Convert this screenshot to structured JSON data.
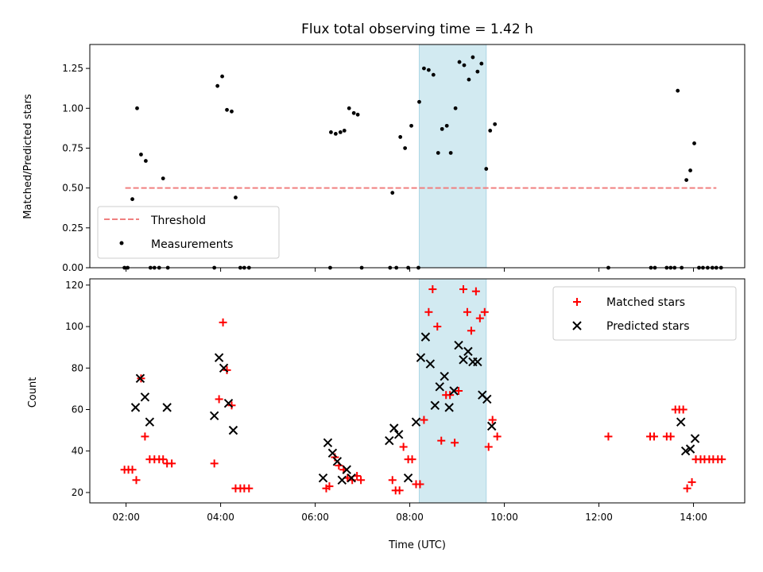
{
  "chart_data": [
    {
      "type": "scatter",
      "title": "Flux total observing time = 1.42 h",
      "xlabel": "",
      "ylabel": "Matched/Predicted stars",
      "ylim": [
        0,
        1.4
      ],
      "yticks": [
        0.0,
        0.25,
        0.5,
        0.75,
        1.0,
        1.25
      ],
      "ytick_labels": [
        "0.00",
        "0.25",
        "0.50",
        "0.75",
        "1.00",
        "1.25"
      ],
      "threshold": {
        "name": "Threshold",
        "value": 0.5,
        "x_range": [
          "01:59",
          "14:29"
        ],
        "color": "#f08080"
      },
      "highlight": {
        "from": "08:12",
        "to": "09:37",
        "color": "#add8e6"
      },
      "legend": {
        "position": "lower-left",
        "entries": [
          "Threshold",
          "Measurements"
        ]
      },
      "series": [
        {
          "name": "Measurements",
          "color": "#000000",
          "points": [
            [
              "01:58",
              0
            ],
            [
              "02:02",
              0
            ],
            [
              "02:08",
              0.43
            ],
            [
              "02:14",
              1.0
            ],
            [
              "02:19",
              0.71
            ],
            [
              "02:25",
              0.67
            ],
            [
              "02:31",
              0
            ],
            [
              "02:36",
              0
            ],
            [
              "02:42",
              0
            ],
            [
              "02:47",
              0.56
            ],
            [
              "02:53",
              0
            ],
            [
              "03:52",
              0
            ],
            [
              "03:56",
              1.14
            ],
            [
              "04:02",
              1.2
            ],
            [
              "04:08",
              0.99
            ],
            [
              "04:14",
              0.98
            ],
            [
              "04:19",
              0.44
            ],
            [
              "04:25",
              0
            ],
            [
              "04:30",
              0
            ],
            [
              "04:36",
              0
            ],
            [
              "06:19",
              0
            ],
            [
              "06:20",
              0.85
            ],
            [
              "06:26",
              0.84
            ],
            [
              "06:32",
              0.85
            ],
            [
              "06:37",
              0.86
            ],
            [
              "06:43",
              1.0
            ],
            [
              "06:49",
              0.97
            ],
            [
              "06:54",
              0.96
            ],
            [
              "06:59",
              0
            ],
            [
              "07:35",
              0
            ],
            [
              "07:38",
              0.47
            ],
            [
              "07:43",
              0
            ],
            [
              "07:48",
              0.82
            ],
            [
              "07:54",
              0.75
            ],
            [
              "07:58",
              0
            ],
            [
              "08:02",
              0.89
            ],
            [
              "08:11",
              0
            ],
            [
              "08:12",
              1.04
            ],
            [
              "08:18",
              1.25
            ],
            [
              "08:24",
              1.24
            ],
            [
              "08:30",
              1.21
            ],
            [
              "08:36",
              0.72
            ],
            [
              "08:41",
              0.87
            ],
            [
              "08:47",
              0.89
            ],
            [
              "08:52",
              0.72
            ],
            [
              "08:58",
              1.0
            ],
            [
              "09:03",
              1.29
            ],
            [
              "09:09",
              1.27
            ],
            [
              "09:15",
              1.18
            ],
            [
              "09:20",
              1.32
            ],
            [
              "09:26",
              1.23
            ],
            [
              "09:31",
              1.28
            ],
            [
              "09:37",
              0.62
            ],
            [
              "09:42",
              0.86
            ],
            [
              "09:48",
              0.9
            ],
            [
              "12:12",
              0
            ],
            [
              "13:06",
              0
            ],
            [
              "13:11",
              0
            ],
            [
              "13:26",
              0
            ],
            [
              "13:31",
              0
            ],
            [
              "13:36",
              0
            ],
            [
              "13:40",
              1.11
            ],
            [
              "13:45",
              0
            ],
            [
              "13:51",
              0.55
            ],
            [
              "13:56",
              0.61
            ],
            [
              "14:01",
              0.78
            ],
            [
              "14:07",
              0
            ],
            [
              "14:12",
              0
            ],
            [
              "14:18",
              0
            ],
            [
              "14:24",
              0
            ],
            [
              "14:29",
              0
            ],
            [
              "14:35",
              0
            ]
          ]
        }
      ]
    },
    {
      "type": "scatter",
      "title": "",
      "xlabel": "Time (UTC)",
      "ylabel": "Count",
      "ylim": [
        15,
        123
      ],
      "xlim": [
        "01:14",
        "15:05"
      ],
      "xticks": [
        "02:00",
        "04:00",
        "06:00",
        "08:00",
        "10:00",
        "12:00",
        "14:00"
      ],
      "yticks": [
        20,
        40,
        60,
        80,
        100,
        120
      ],
      "ytick_labels": [
        "20",
        "40",
        "60",
        "80",
        "100",
        "120"
      ],
      "highlight": {
        "from": "08:12",
        "to": "09:37",
        "color": "#add8e6"
      },
      "legend": {
        "position": "upper-right",
        "entries": [
          "Matched stars",
          "Predicted stars"
        ]
      },
      "series": [
        {
          "name": "Matched stars",
          "marker": "+",
          "color": "#ff0000",
          "points": [
            [
              "01:58",
              31
            ],
            [
              "02:03",
              31
            ],
            [
              "02:08",
              31
            ],
            [
              "02:13",
              26
            ],
            [
              "02:19",
              75
            ],
            [
              "02:24",
              47
            ],
            [
              "02:30",
              36
            ],
            [
              "02:36",
              36
            ],
            [
              "02:42",
              36
            ],
            [
              "02:47",
              36
            ],
            [
              "02:52",
              34
            ],
            [
              "02:58",
              34
            ],
            [
              "03:52",
              34
            ],
            [
              "03:58",
              65
            ],
            [
              "04:03",
              102
            ],
            [
              "04:08",
              79
            ],
            [
              "04:14",
              62
            ],
            [
              "04:19",
              22
            ],
            [
              "04:25",
              22
            ],
            [
              "04:30",
              22
            ],
            [
              "04:36",
              22
            ],
            [
              "06:14",
              22
            ],
            [
              "06:18",
              23
            ],
            [
              "06:25",
              37
            ],
            [
              "06:30",
              33
            ],
            [
              "06:36",
              31
            ],
            [
              "06:41",
              27
            ],
            [
              "06:47",
              26
            ],
            [
              "06:53",
              28
            ],
            [
              "06:58",
              26
            ],
            [
              "07:38",
              26
            ],
            [
              "07:42",
              21
            ],
            [
              "07:47",
              21
            ],
            [
              "07:52",
              42
            ],
            [
              "07:58",
              36
            ],
            [
              "08:03",
              36
            ],
            [
              "08:08",
              24
            ],
            [
              "08:13",
              24
            ],
            [
              "08:18",
              55
            ],
            [
              "08:24",
              107
            ],
            [
              "08:29",
              118
            ],
            [
              "08:35",
              100
            ],
            [
              "08:40",
              45
            ],
            [
              "08:46",
              67
            ],
            [
              "08:51",
              67
            ],
            [
              "08:57",
              44
            ],
            [
              "09:02",
              69
            ],
            [
              "09:08",
              118
            ],
            [
              "09:13",
              107
            ],
            [
              "09:18",
              98
            ],
            [
              "09:24",
              117
            ],
            [
              "09:29",
              104
            ],
            [
              "09:35",
              107
            ],
            [
              "09:40",
              42
            ],
            [
              "09:45",
              55
            ],
            [
              "09:51",
              47
            ],
            [
              "12:12",
              47
            ],
            [
              "13:05",
              47
            ],
            [
              "13:10",
              47
            ],
            [
              "13:26",
              47
            ],
            [
              "13:31",
              47
            ],
            [
              "13:37",
              60
            ],
            [
              "13:42",
              60
            ],
            [
              "13:47",
              60
            ],
            [
              "13:52",
              22
            ],
            [
              "13:58",
              25
            ],
            [
              "14:03",
              36
            ],
            [
              "14:09",
              36
            ],
            [
              "14:14",
              36
            ],
            [
              "14:20",
              36
            ],
            [
              "14:25",
              36
            ],
            [
              "14:31",
              36
            ],
            [
              "14:36",
              36
            ]
          ]
        },
        {
          "name": "Predicted stars",
          "marker": "x",
          "color": "#000000",
          "points": [
            [
              "02:12",
              61
            ],
            [
              "02:18",
              75
            ],
            [
              "02:24",
              66
            ],
            [
              "02:30",
              54
            ],
            [
              "02:52",
              61
            ],
            [
              "03:52",
              57
            ],
            [
              "03:58",
              85
            ],
            [
              "04:04",
              80
            ],
            [
              "04:10",
              63
            ],
            [
              "04:16",
              50
            ],
            [
              "06:10",
              27
            ],
            [
              "06:16",
              44
            ],
            [
              "06:22",
              39
            ],
            [
              "06:28",
              35
            ],
            [
              "06:34",
              26
            ],
            [
              "06:40",
              31
            ],
            [
              "06:46",
              27
            ],
            [
              "07:34",
              45
            ],
            [
              "07:40",
              51
            ],
            [
              "07:46",
              48
            ],
            [
              "07:58",
              27
            ],
            [
              "08:08",
              54
            ],
            [
              "08:14",
              85
            ],
            [
              "08:20",
              95
            ],
            [
              "08:26",
              82
            ],
            [
              "08:32",
              62
            ],
            [
              "08:38",
              71
            ],
            [
              "08:44",
              76
            ],
            [
              "08:50",
              61
            ],
            [
              "08:56",
              69
            ],
            [
              "09:02",
              91
            ],
            [
              "09:08",
              84
            ],
            [
              "09:14",
              88
            ],
            [
              "09:20",
              83
            ],
            [
              "09:26",
              83
            ],
            [
              "09:32",
              67
            ],
            [
              "09:38",
              65
            ],
            [
              "09:44",
              52
            ],
            [
              "13:44",
              54
            ],
            [
              "13:50",
              40
            ],
            [
              "13:56",
              41
            ],
            [
              "14:02",
              46
            ]
          ]
        }
      ]
    }
  ]
}
